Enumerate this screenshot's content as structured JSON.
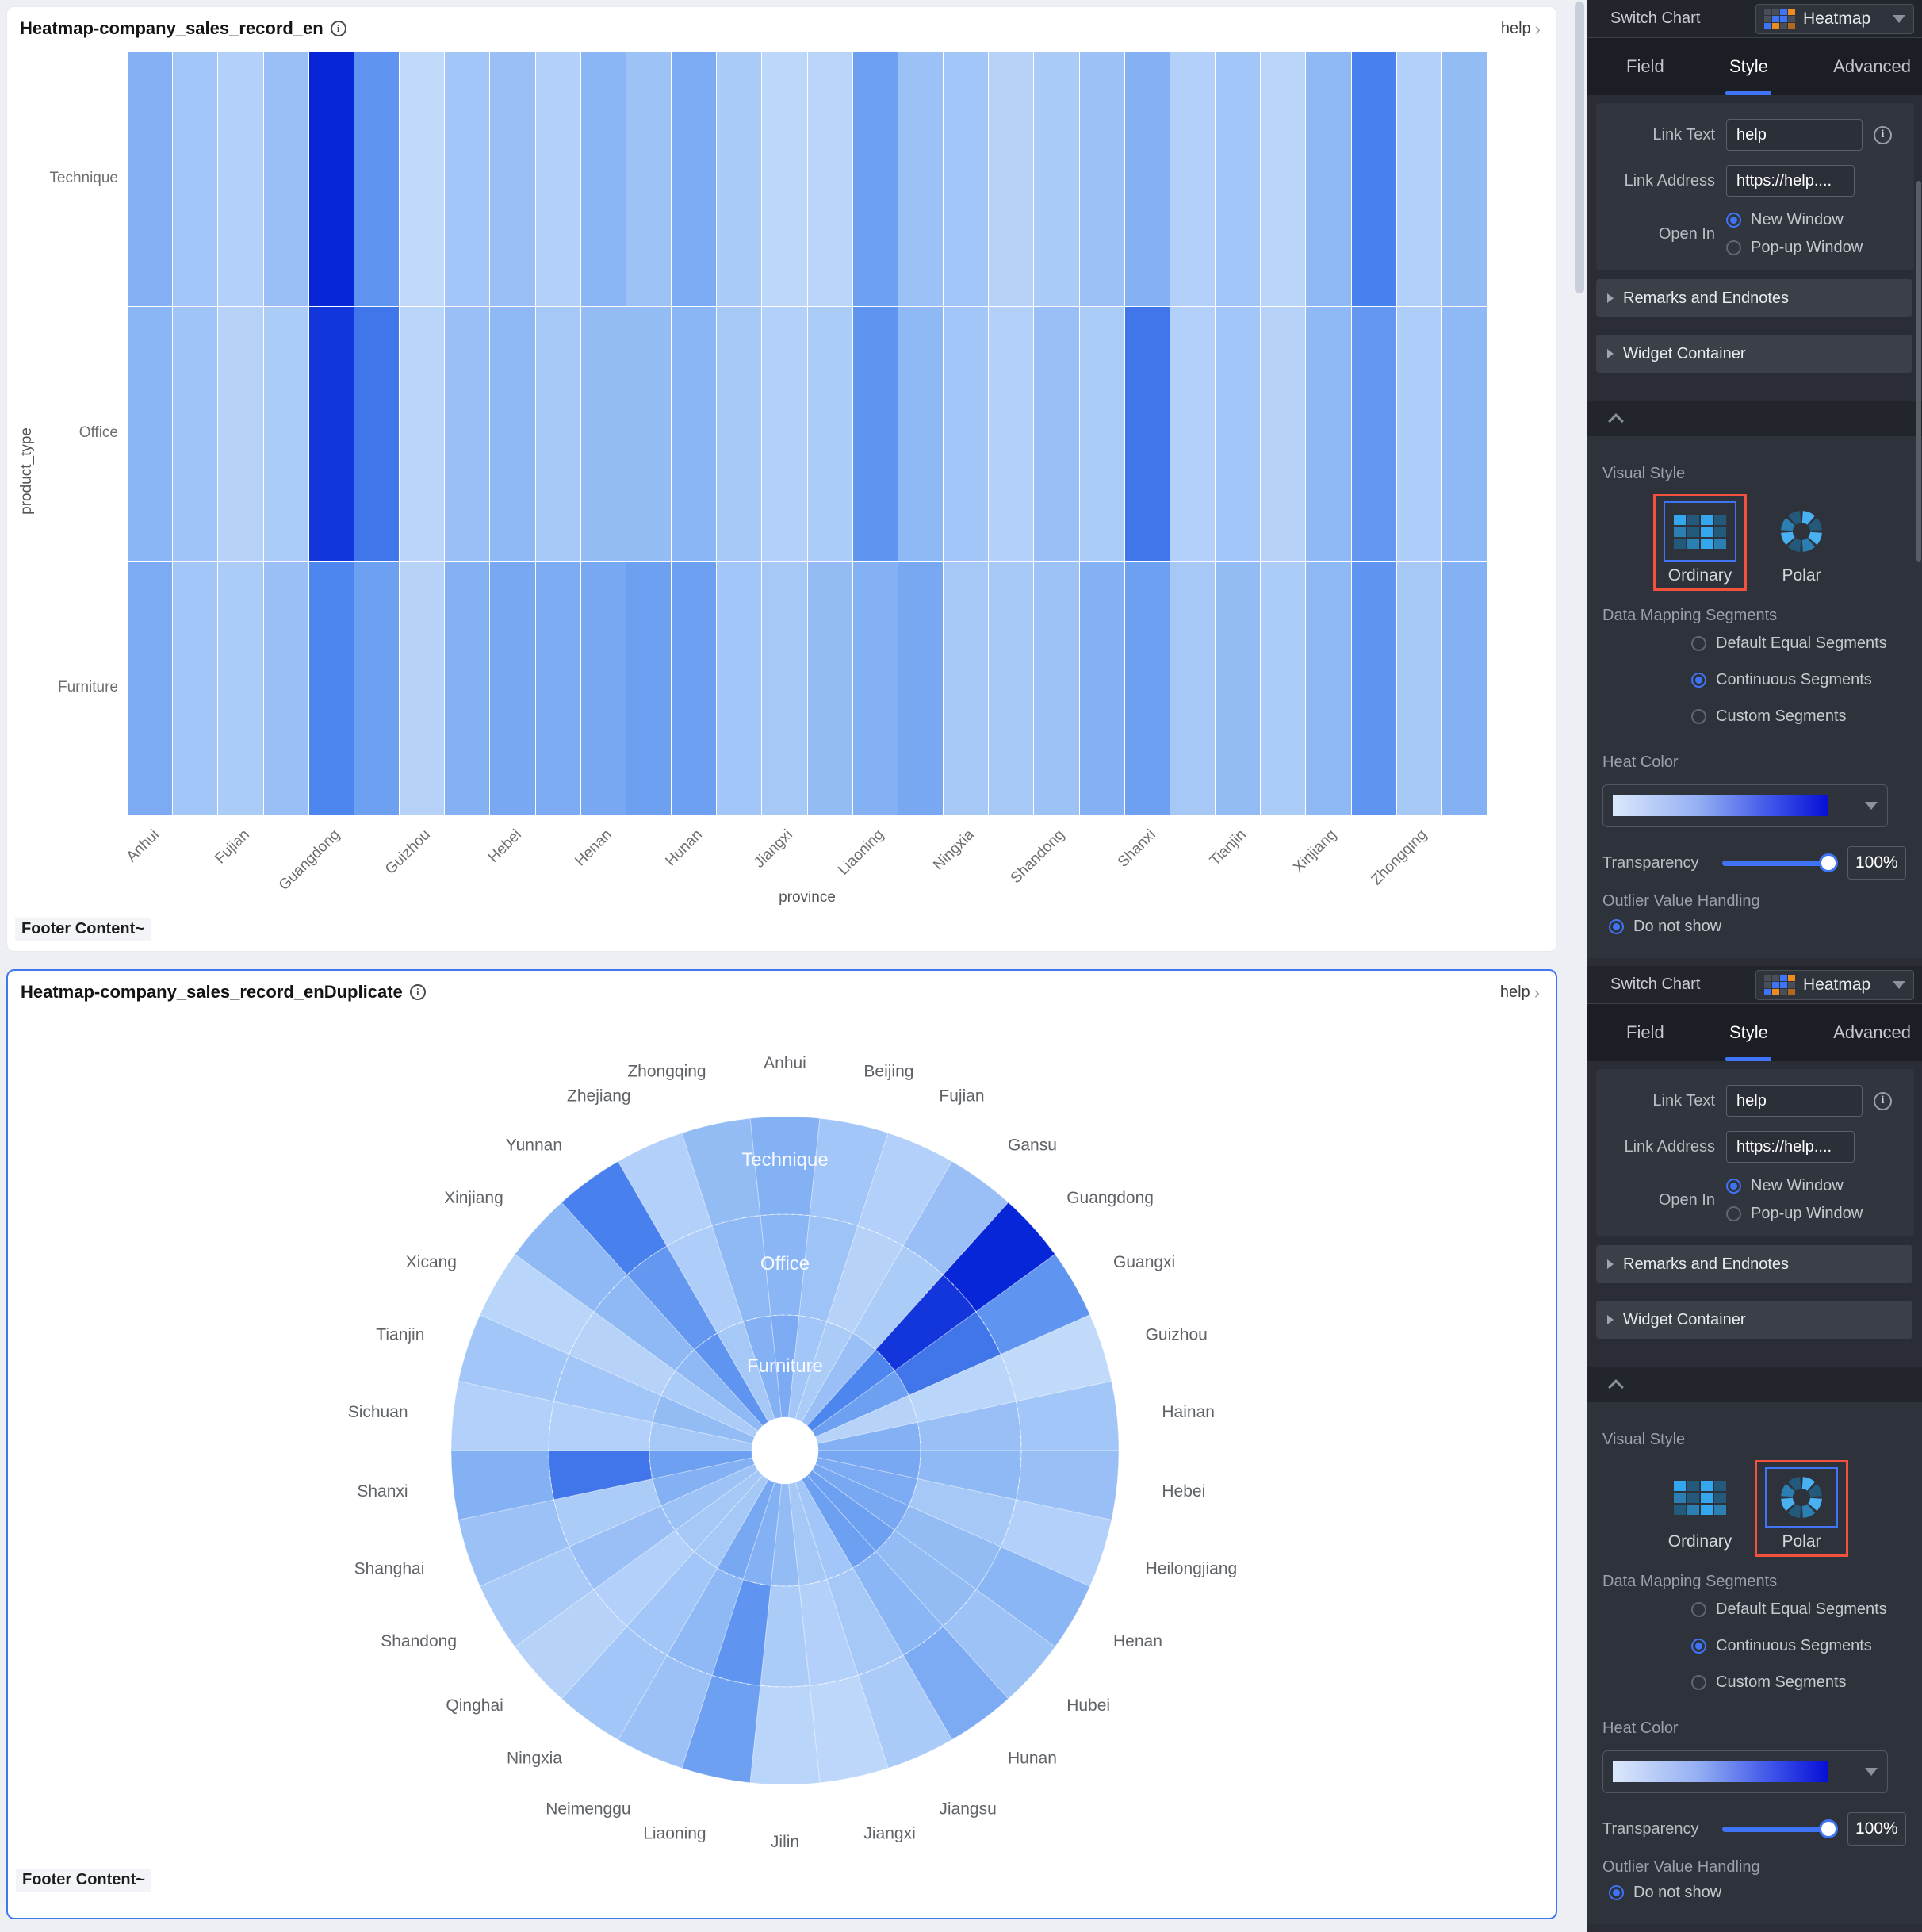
{
  "cards": [
    {
      "title": "Heatmap-company_sales_record_en",
      "help_label": "help",
      "footer": "Footer Content~"
    },
    {
      "title": "Heatmap-company_sales_record_enDuplicate",
      "help_label": "help",
      "footer": "Footer Content~"
    }
  ],
  "chart_data": [
    {
      "type": "heatmap",
      "title": "Heatmap-company_sales_record_en",
      "xlabel": "province",
      "ylabel": "product_type",
      "x_categories": [
        "Anhui",
        "Beijing",
        "Fujian",
        "Gansu",
        "Guangdong",
        "Guangxi",
        "Guizhou",
        "Hainan",
        "Hebei",
        "Heilongjiang",
        "Henan",
        "Hubei",
        "Hunan",
        "Jiangsu",
        "Jiangxi",
        "Jilin",
        "Liaoning",
        "Neimenggu",
        "Ningxia",
        "Qinghai",
        "Shandong",
        "Shanghai",
        "Shanxi",
        "Sichuan",
        "Tianjin",
        "Xicang",
        "Xinjiang",
        "Yunnan",
        "Zhejiang",
        "Zhongqing"
      ],
      "x_tick_labels_shown": [
        "Anhui",
        "Fujian",
        "Guangdong",
        "Guizhou",
        "Hebei",
        "Henan",
        "Hunan",
        "Jiangxi",
        "Liaoning",
        "Ningxia",
        "Shandong",
        "Shanxi",
        "Tianjin",
        "Xinjiang",
        "Zhongqing"
      ],
      "y_categories": [
        "Technique",
        "Office",
        "Furniture"
      ],
      "value_scale": "relative color intensity 0-100 (estimated from pixels, no numeric labels shown)",
      "series": [
        {
          "name": "Technique",
          "values": [
            45,
            30,
            22,
            35,
            100,
            62,
            14,
            30,
            35,
            22,
            42,
            33,
            48,
            26,
            16,
            18,
            55,
            34,
            30,
            20,
            26,
            34,
            45,
            22,
            30,
            18,
            40,
            72,
            22,
            38
          ]
        },
        {
          "name": "Office",
          "values": [
            42,
            32,
            20,
            25,
            95,
            75,
            18,
            35,
            40,
            28,
            38,
            38,
            42,
            28,
            22,
            25,
            62,
            40,
            30,
            22,
            35,
            25,
            75,
            22,
            30,
            20,
            40,
            60,
            24,
            40
          ]
        },
        {
          "name": "Furniture",
          "values": [
            48,
            30,
            25,
            35,
            70,
            55,
            20,
            45,
            50,
            48,
            50,
            55,
            55,
            30,
            28,
            38,
            45,
            50,
            28,
            28,
            33,
            45,
            55,
            28,
            38,
            25,
            40,
            62,
            28,
            45
          ]
        }
      ],
      "color_low": "#DCEBFD",
      "color_high": "#0726D8",
      "grid": false,
      "legend": false
    },
    {
      "type": "polar-heatmap",
      "title": "Heatmap-company_sales_record_enDuplicate",
      "ring_categories_inner_to_outer": [
        "Furniture",
        "Office",
        "Technique"
      ],
      "angular_categories_clockwise_from_top": [
        "Anhui",
        "Beijing",
        "Fujian",
        "Gansu",
        "Guangdong",
        "Guangxi",
        "Guizhou",
        "Hainan",
        "Hebei",
        "Heilongjiang",
        "Henan",
        "Hubei",
        "Hunan",
        "Jiangsu",
        "Jiangxi",
        "Jilin",
        "Liaoning",
        "Neimenggu",
        "Ningxia",
        "Qinghai",
        "Shandong",
        "Shanghai",
        "Shanxi",
        "Sichuan",
        "Tianjin",
        "Xicang",
        "Xinjiang",
        "Yunnan",
        "Zhejiang",
        "Zhongqing"
      ],
      "values_source": "same matrix as chart_data[0].series (duplicate widget)",
      "color_low": "#DCEBFD",
      "color_high": "#0726D8"
    }
  ],
  "panel_common": {
    "switch_chart_label": "Switch Chart",
    "chart_type": "Heatmap",
    "tabs": [
      "Field",
      "Style",
      "Advanced"
    ],
    "active_tab": "Style",
    "link_text_label": "Link Text",
    "link_text_value": "help",
    "link_address_label": "Link Address",
    "link_address_value": "https://help....",
    "open_in_label": "Open In",
    "open_in_options": [
      "New Window",
      "Pop-up Window"
    ],
    "open_in_selected": "New Window",
    "remarks_label": "Remarks and Endnotes",
    "widget_label": "Widget Container",
    "visual_style_label": "Visual Style",
    "style_options": [
      "Ordinary",
      "Polar"
    ],
    "dms_label": "Data Mapping Segments",
    "dms_options": [
      "Default Equal Segments",
      "Continuous Segments",
      "Custom Segments"
    ],
    "dms_selected": "Continuous Segments",
    "heat_color_label": "Heat Color",
    "transparency_label": "Transparency",
    "transparency_value": "100%",
    "outlier_label": "Outlier Value Handling",
    "outlier_option": "Do not show",
    "outlier_selected": true
  },
  "panels": [
    {
      "selected_style": "Ordinary"
    },
    {
      "selected_style": "Polar"
    }
  ],
  "icons": {
    "switch_icon_colors": [
      "#4a4f57",
      "#4a4f57",
      "#3f74f6",
      "#ef8c1f",
      "#4a4f57",
      "#3f74f6",
      "#3f74f6",
      "#4a4f57",
      "#3f74f6",
      "#ef8c1f",
      "#4a4f57",
      "#b06a20"
    ],
    "ordinary_icon_colors": [
      "#34a6ee",
      "#235a7c",
      "#34a6ee",
      "#235a7c",
      "#2b7fb2",
      "#235a7c",
      "#34a6ee",
      "#235a7c",
      "#235a7c",
      "#2b7fb2",
      "#34a6ee",
      "#2b7fb2"
    ],
    "polar_icon_colors": [
      "#49b0f2",
      "#235a7c",
      "#49b0f2",
      "#2b7fb2",
      "#235a7c",
      "#49b0f2",
      "#2b7fb2",
      "#235a7c"
    ]
  },
  "colors": {
    "accent_blue": "#3f74f6",
    "annotation_red": "#f4513c",
    "panel_bg": "#2a2d35",
    "card_selected_border": "#4078f0",
    "heat_low": "#DCEBFD",
    "heat_high": "#0726D8"
  }
}
